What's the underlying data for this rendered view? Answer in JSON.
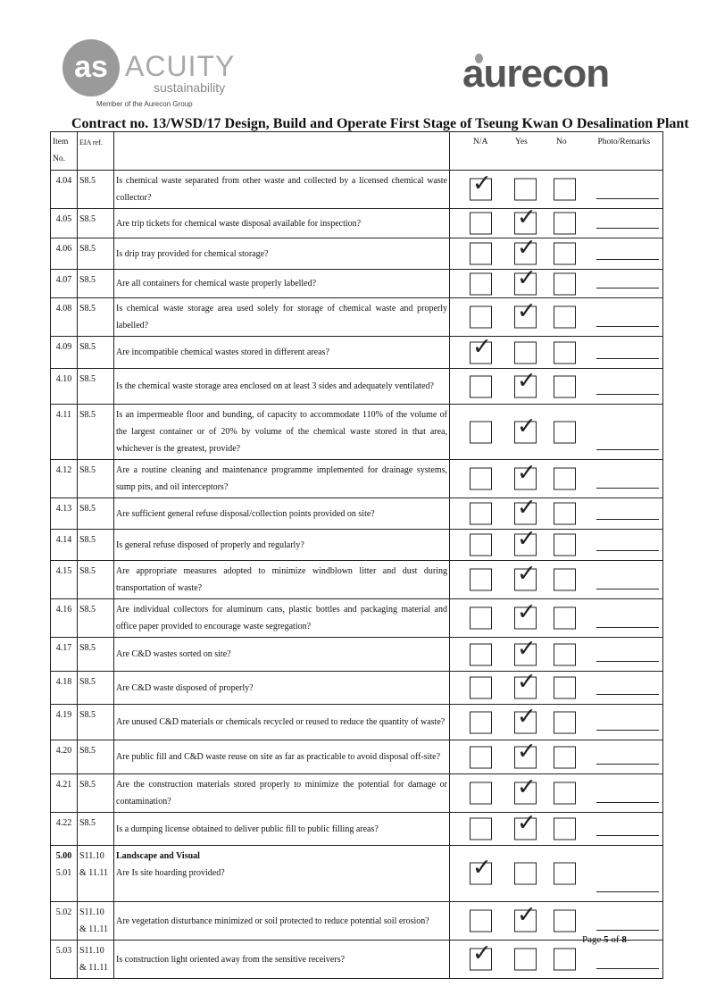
{
  "header": {
    "left_logo": {
      "mark": "as",
      "name": "ACUITY",
      "sub": "sustainability",
      "tagline": "Member of the Aurecon Group"
    },
    "right_logo": "aurecon",
    "title": "Contract no.  13/WSD/17 Design, Build and Operate First Stage of Tseung Kwan O Desalination Plant"
  },
  "table": {
    "columns": {
      "item": "Item No.",
      "eia": "EIA ref.",
      "na": "N/A",
      "yes": "Yes",
      "no": "No",
      "remarks": "Photo/Remarks"
    },
    "rows": [
      {
        "item": "4.04",
        "eia": "S8.5",
        "question": "Is chemical waste separated from other waste and collected by a licensed chemical waste collector?",
        "answer": "na"
      },
      {
        "item": "4.05",
        "eia": "S8.5",
        "question": "Are trip tickets for chemical waste disposal available for inspection?",
        "answer": "yes"
      },
      {
        "item": "4.06",
        "eia": "S8.5",
        "question": "Is drip tray provided for chemical storage?",
        "answer": "yes"
      },
      {
        "item": "4.07",
        "eia": "S8.5",
        "question": "Are all containers for chemical waste properly labelled?",
        "answer": "yes"
      },
      {
        "item": "4.08",
        "eia": "S8.5",
        "question": "Is chemical waste storage area used solely for storage of chemical waste and properly labelled?",
        "answer": "yes"
      },
      {
        "item": "4.09",
        "eia": "S8.5",
        "question": "Are incompatible chemical wastes stored in different areas?",
        "answer": "na"
      },
      {
        "item": "4.10",
        "eia": "S8.5",
        "question": "Is the chemical waste storage area enclosed on at least 3 sides and adequately ventilated?",
        "answer": "yes"
      },
      {
        "item": "4.11",
        "eia": "S8.5",
        "question": "Is an impermeable floor and bunding, of capacity to accommodate 110% of the volume of the largest container or of 20% by volume of the chemical waste stored in that area, whichever is the greatest, provide?",
        "answer": "yes"
      },
      {
        "item": "4.12",
        "eia": "S8.5",
        "question": "Are a routine cleaning and maintenance programme implemented for drainage systems, sump pits, and oil interceptors?",
        "answer": "yes"
      },
      {
        "item": "4.13",
        "eia": "S8.5",
        "question": "Are sufficient general refuse disposal/collection points provided on site?",
        "answer": "yes"
      },
      {
        "item": "4.14",
        "eia": "S8.5",
        "question": "Is general refuse disposed of properly and regularly?",
        "answer": "yes"
      },
      {
        "item": "4.15",
        "eia": "S8.5",
        "question": "Are appropriate measures adopted to minimize windblown litter and dust during transportation of waste?",
        "answer": "yes"
      },
      {
        "item": "4.16",
        "eia": "S8.5",
        "question": "Are individual collectors for aluminum cans, plastic bottles and packaging material and office paper provided to encourage waste segregation?",
        "answer": "yes"
      },
      {
        "item": "4.17",
        "eia": "S8.5",
        "question": "Are C&D wastes sorted on site?",
        "answer": "yes"
      },
      {
        "item": "4.18",
        "eia": "S8.5",
        "question": "Are C&D waste disposed of properly?",
        "answer": "yes"
      },
      {
        "item": "4.19",
        "eia": "S8.5",
        "question": "Are unused C&D materials or chemicals recycled or reused to reduce the quantity of waste?",
        "answer": "yes"
      },
      {
        "item": "4.20",
        "eia": "S8.5",
        "question": "Are public fill and C&D waste reuse on site as far as practicable to avoid disposal off-site?",
        "answer": "yes"
      },
      {
        "item": "4.21",
        "eia": "S8.5",
        "question": "Are the construction materials stored properly to minimize the potential for damage or contamination?",
        "answer": "yes"
      },
      {
        "item": "4.22",
        "eia": "S8.5",
        "question": "Is a dumping license obtained to deliver public fill to public filling areas?",
        "answer": "yes"
      },
      {
        "item": "5.00",
        "item2": "5.01",
        "eia": "S11.10",
        "eia2": "& 11.11",
        "section": "Landscape and Visual",
        "question": "Are Is site hoarding provided?",
        "answer": "na"
      },
      {
        "item": "5.02",
        "eia": "S11.10 & 11.11",
        "question": "Are vegetation disturbance minimized or soil protected to reduce potential soil erosion?",
        "answer": "yes"
      },
      {
        "item": "5.03",
        "eia": "S11.10 & 11.11",
        "question": "Is construction light oriented away from the sensitive receivers?",
        "answer": "na"
      }
    ]
  },
  "footer": {
    "page_prefix": "Page ",
    "page": "5",
    "of": " of ",
    "total": "8"
  }
}
